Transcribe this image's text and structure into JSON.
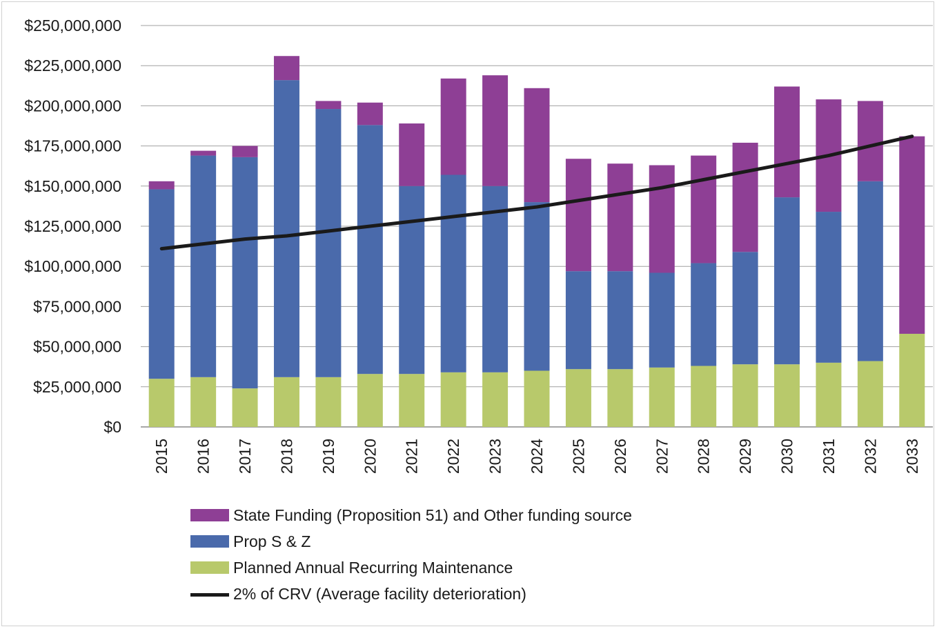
{
  "chart_data": {
    "type": "bar",
    "stacked": true,
    "categories": [
      "2015",
      "2016",
      "2017",
      "2018",
      "2019",
      "2020",
      "2021",
      "2022",
      "2023",
      "2024",
      "2025",
      "2026",
      "2027",
      "2028",
      "2029",
      "2030",
      "2031",
      "2032",
      "2033"
    ],
    "series": [
      {
        "name": "Planned Annual Recurring Maintenance",
        "color": "#b8c96b",
        "values": [
          30000000,
          31000000,
          24000000,
          31000000,
          31000000,
          33000000,
          33000000,
          34000000,
          34000000,
          35000000,
          36000000,
          36000000,
          37000000,
          38000000,
          39000000,
          39000000,
          40000000,
          41000000,
          58000000
        ]
      },
      {
        "name": "Prop S & Z",
        "color": "#4a6aab",
        "values": [
          118000000,
          138000000,
          144000000,
          185000000,
          167000000,
          155000000,
          117000000,
          123000000,
          116000000,
          105000000,
          61000000,
          61000000,
          59000000,
          64000000,
          70000000,
          104000000,
          94000000,
          112000000,
          0
        ]
      },
      {
        "name": "State Funding (Proposition 51) and Other funding source",
        "color": "#8e3f95",
        "values": [
          5000000,
          3000000,
          7000000,
          15000000,
          5000000,
          14000000,
          39000000,
          60000000,
          69000000,
          71000000,
          70000000,
          67000000,
          67000000,
          67000000,
          68000000,
          69000000,
          70000000,
          50000000,
          123000000
        ]
      }
    ],
    "line": {
      "name": "2% of CRV (Average facility deterioration)",
      "color": "#1a1a1a",
      "values": [
        111000000,
        114000000,
        117000000,
        119000000,
        122000000,
        125000000,
        128000000,
        131000000,
        134000000,
        137000000,
        141000000,
        145000000,
        149000000,
        154000000,
        159000000,
        164000000,
        169000000,
        175000000,
        181000000
      ]
    },
    "y_ticks": [
      "$0",
      "$25,000,000",
      "$50,000,000",
      "$75,000,000",
      "$100,000,000",
      "$125,000,000",
      "$150,000,000",
      "$175,000,000",
      "$200,000,000",
      "$225,000,000",
      "$250,000,000"
    ],
    "ylim": [
      0,
      250000000
    ],
    "grid": true,
    "legend_position": "bottom-left",
    "title": "",
    "xlabel": "",
    "ylabel": ""
  },
  "legend": [
    {
      "label": "State Funding (Proposition 51) and Other funding source",
      "color": "#8e3f95",
      "kind": "box"
    },
    {
      "label": "Prop S & Z",
      "color": "#4a6aab",
      "kind": "box"
    },
    {
      "label": "Planned Annual Recurring Maintenance",
      "color": "#b8c96b",
      "kind": "box"
    },
    {
      "label": "2% of CRV (Average facility deterioration)",
      "color": "#1a1a1a",
      "kind": "line"
    }
  ]
}
